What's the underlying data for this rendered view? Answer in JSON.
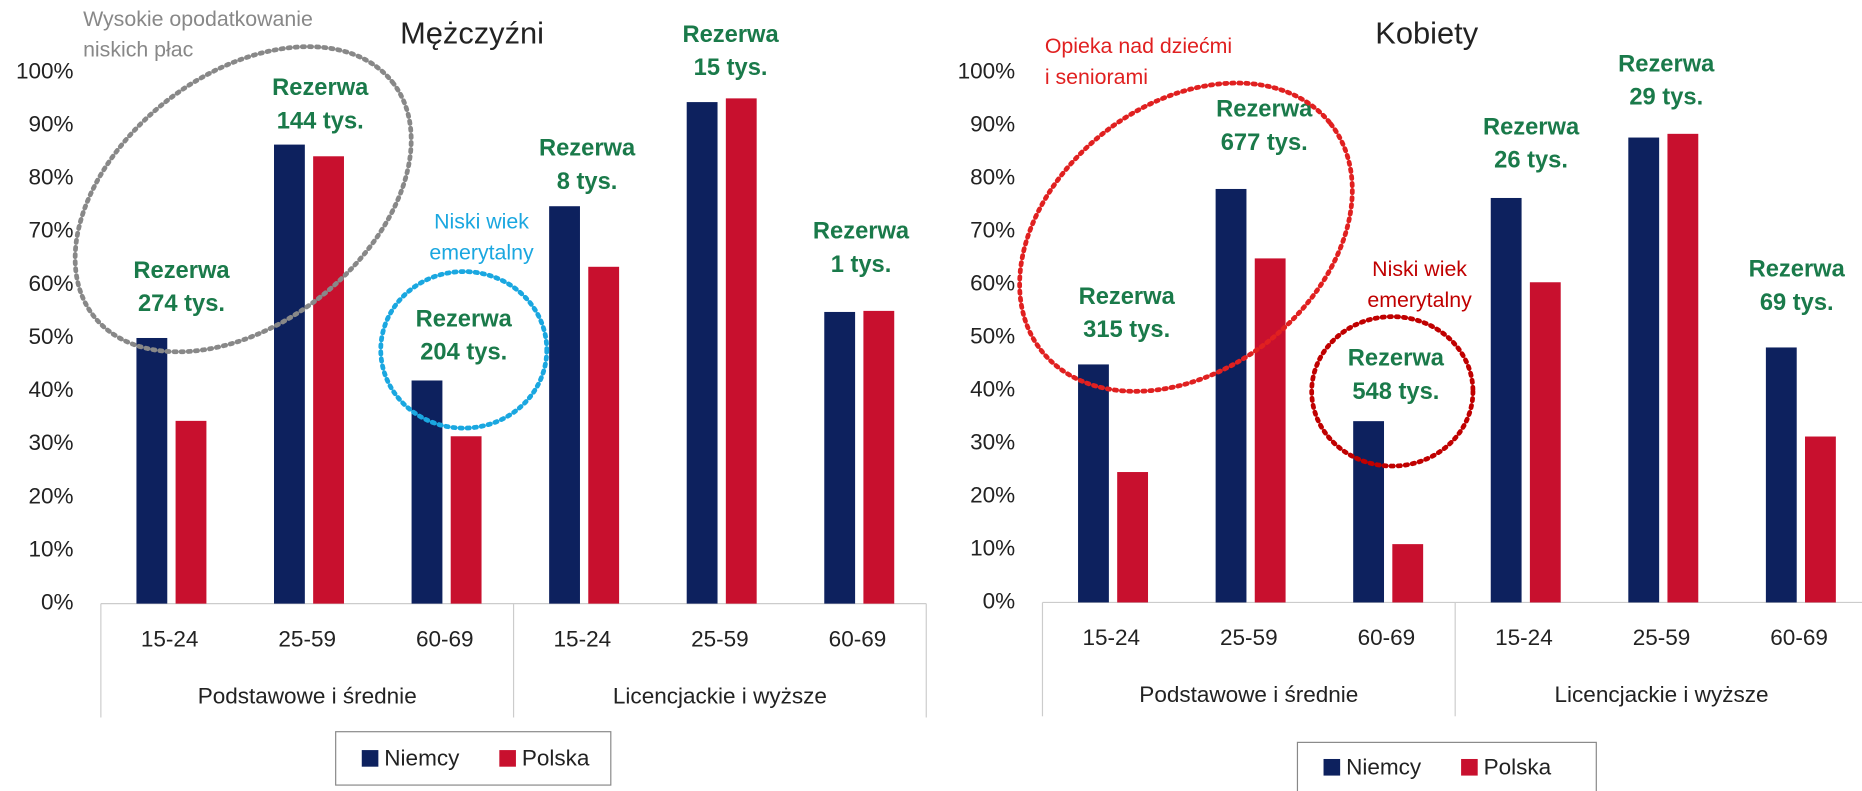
{
  "chart_data": [
    {
      "type": "bar",
      "title": "Mężczyźni",
      "categories": [
        "15-24",
        "25-59",
        "60-69",
        "15-24",
        "25-59",
        "60-69"
      ],
      "groups": [
        "Podstawowe i średnie",
        "Licencjackie i wyższe"
      ],
      "series": [
        {
          "name": "Niemcy",
          "color": "#0d215e",
          "values": [
            50,
            86.4,
            42,
            74.8,
            94.4,
            54.9
          ]
        },
        {
          "name": "Polska",
          "color": "#c8102e",
          "values": [
            34.4,
            84.2,
            31.5,
            63.4,
            95.1,
            55.1
          ]
        }
      ],
      "ylim": [
        0,
        100
      ],
      "yticks": [
        {
          "value": 0,
          "label": "0%"
        },
        {
          "value": 10,
          "label": "10%"
        },
        {
          "value": 20,
          "label": "20%"
        },
        {
          "value": 30,
          "label": "30%"
        },
        {
          "value": 40,
          "label": "40%"
        },
        {
          "value": 50,
          "label": "50%"
        },
        {
          "value": 60,
          "label": "60%"
        },
        {
          "value": 70,
          "label": "70%"
        },
        {
          "value": 80,
          "label": "80%"
        },
        {
          "value": 90,
          "label": "90%"
        },
        {
          "value": 100,
          "label": "100%"
        }
      ],
      "reserve_labels": [
        [
          "Rezerwa",
          "274 tys."
        ],
        [
          "Rezerwa",
          "144 tys."
        ],
        [
          "Rezerwa",
          "204 tys."
        ],
        [
          "Rezerwa",
          "8 tys."
        ],
        [
          "Rezerwa",
          "15 tys."
        ],
        [
          "Rezerwa",
          "1 tys."
        ]
      ],
      "callouts": [
        {
          "lines": [
            "Wysokie opodatkowanie",
            "niskich płac"
          ],
          "color": "#888888"
        },
        {
          "lines": [
            "Niski wiek",
            "emerytalny"
          ],
          "color": "#1aa7e0"
        }
      ]
    },
    {
      "type": "bar",
      "title": "Kobiety",
      "categories": [
        "15-24",
        "25-59",
        "60-69",
        "15-24",
        "25-59",
        "60-69"
      ],
      "groups": [
        "Podstawowe i średnie",
        "Licencjackie i wyższe"
      ],
      "series": [
        {
          "name": "Niemcy",
          "color": "#0d215e",
          "values": [
            44.9,
            78,
            34.2,
            76.3,
            87.7,
            48.1
          ]
        },
        {
          "name": "Polska",
          "color": "#c8102e",
          "values": [
            24.6,
            64.9,
            11,
            60.4,
            88.4,
            31.3
          ]
        }
      ],
      "ylim": [
        0,
        100
      ],
      "yticks": [
        {
          "value": 0,
          "label": "0%"
        },
        {
          "value": 10,
          "label": "10%"
        },
        {
          "value": 20,
          "label": "20%"
        },
        {
          "value": 30,
          "label": "30%"
        },
        {
          "value": 40,
          "label": "40%"
        },
        {
          "value": 50,
          "label": "50%"
        },
        {
          "value": 60,
          "label": "60%"
        },
        {
          "value": 70,
          "label": "70%"
        },
        {
          "value": 80,
          "label": "80%"
        },
        {
          "value": 90,
          "label": "90%"
        },
        {
          "value": 100,
          "label": "100%"
        }
      ],
      "reserve_labels": [
        [
          "Rezerwa",
          "315 tys."
        ],
        [
          "Rezerwa",
          "677 tys."
        ],
        [
          "Rezerwa",
          "548 tys."
        ],
        [
          "Rezerwa",
          "26 tys."
        ],
        [
          "Rezerwa",
          "29 tys."
        ],
        [
          "Rezerwa",
          "69 tys."
        ]
      ],
      "callouts": [
        {
          "lines": [
            "Opieka nad dziećmi",
            "i seniorami"
          ],
          "color": "#e02020"
        },
        {
          "lines": [
            "Niski wiek",
            "emerytalny"
          ],
          "color": "#c00000"
        }
      ]
    }
  ]
}
